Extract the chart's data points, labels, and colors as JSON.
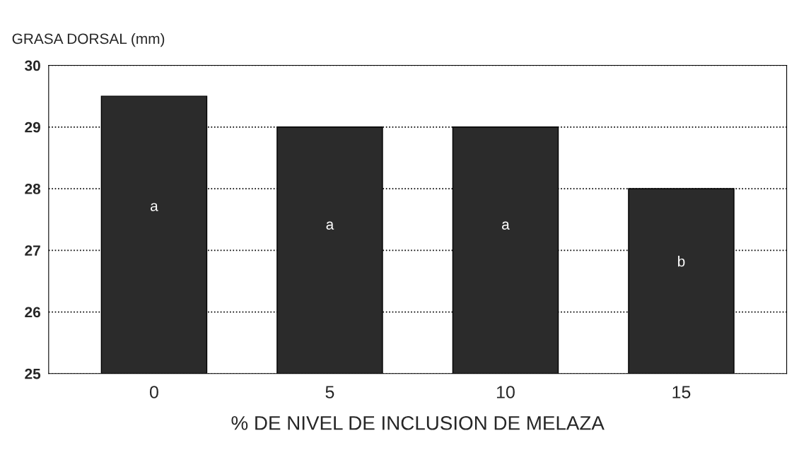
{
  "chart_data": {
    "type": "bar",
    "ylabel": "GRASA DORSAL (mm)",
    "xlabel": "% DE NIVEL DE INCLUSION DE MELAZA",
    "categories": [
      "0",
      "5",
      "10",
      "15"
    ],
    "values": [
      29.5,
      29.0,
      29.0,
      28.0
    ],
    "color": "#2b2b2b",
    "ylim": [
      25,
      30
    ],
    "yticks": [
      25,
      26,
      27,
      28,
      29,
      30
    ],
    "grid": "y",
    "annotations": [
      "a",
      "a",
      "a",
      "b"
    ]
  }
}
